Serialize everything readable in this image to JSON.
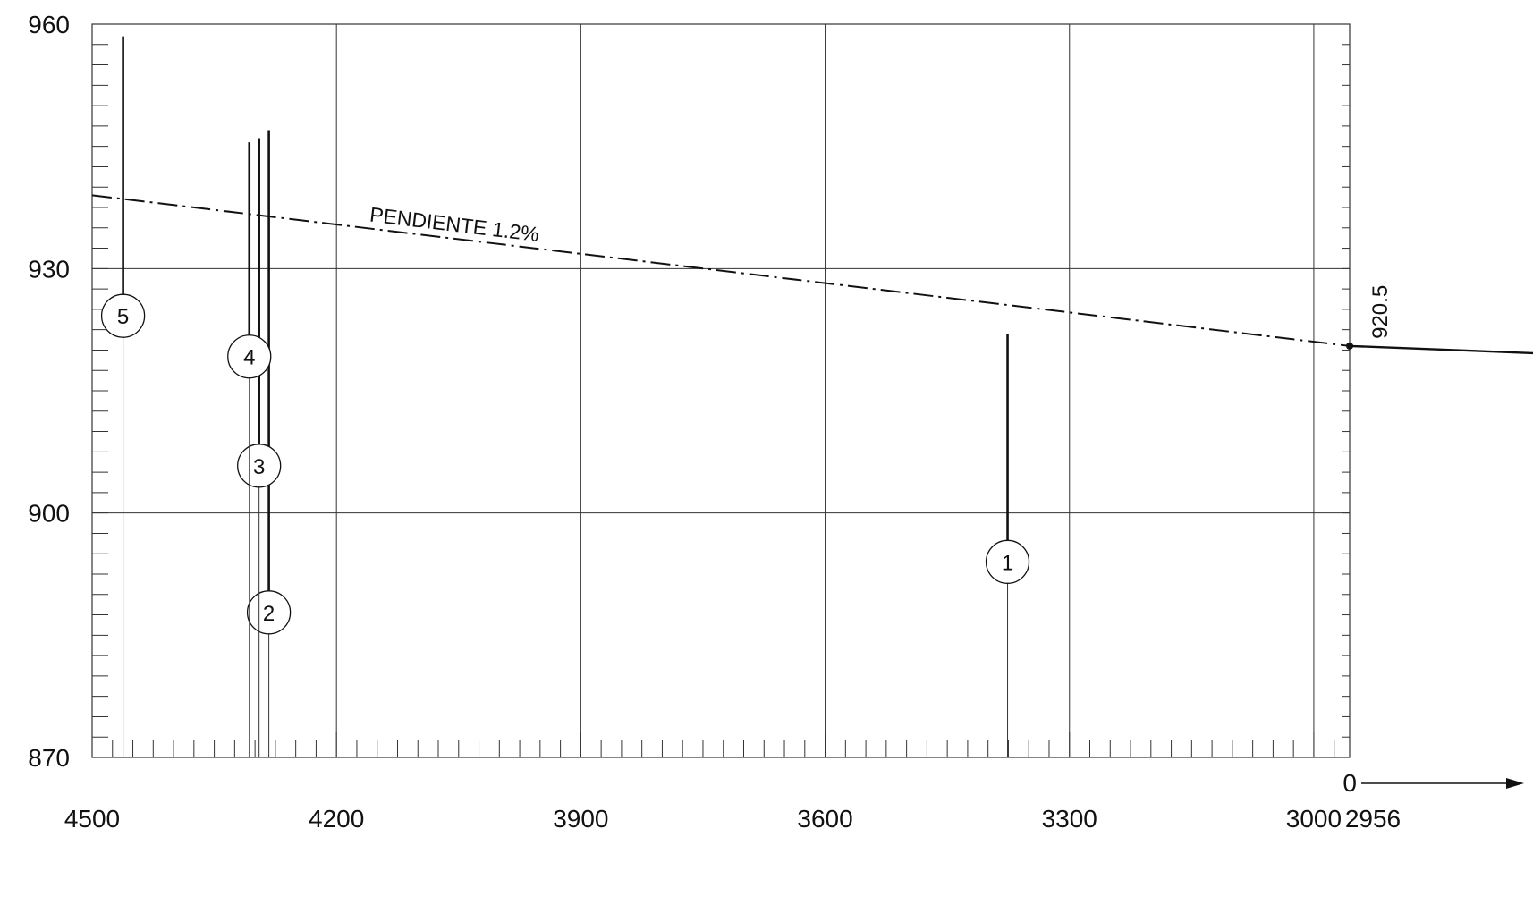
{
  "chart_data": {
    "type": "line",
    "x_ticks": [
      "4500",
      "4200",
      "3900",
      "3600",
      "3300",
      "3000"
    ],
    "x_end_tick": "2956",
    "y_ticks": [
      "960",
      "930",
      "900",
      "870"
    ],
    "xlim": [
      4500,
      2956
    ],
    "ylim": [
      870,
      960
    ],
    "grid": true,
    "series": [
      {
        "name": "PENDIENTE 1.2%",
        "style": "dash-dot",
        "points": [
          [
            4500,
            939.0
          ],
          [
            2956,
            920.5
          ]
        ]
      }
    ],
    "elevation_label": "920.5",
    "elevation_point": {
      "x": 2956,
      "y": 920.5
    },
    "origin": {
      "label": "0",
      "arrow": "→"
    },
    "markers": [
      {
        "label": "1",
        "x": 3376,
        "top": 922.0,
        "circle_y": 894.0
      },
      {
        "label": "2",
        "x": 4283,
        "top": 947.0,
        "circle_y": 887.8
      },
      {
        "label": "3",
        "x": 4295,
        "top": 946.0,
        "circle_y": 905.8
      },
      {
        "label": "4",
        "x": 4307,
        "top": 945.5,
        "circle_y": 919.2
      },
      {
        "label": "5",
        "x": 4462,
        "top": 958.5,
        "circle_y": 924.2
      }
    ]
  },
  "colors": {
    "ink": "#111111",
    "grid": "#333333",
    "background": "#ffffff"
  }
}
